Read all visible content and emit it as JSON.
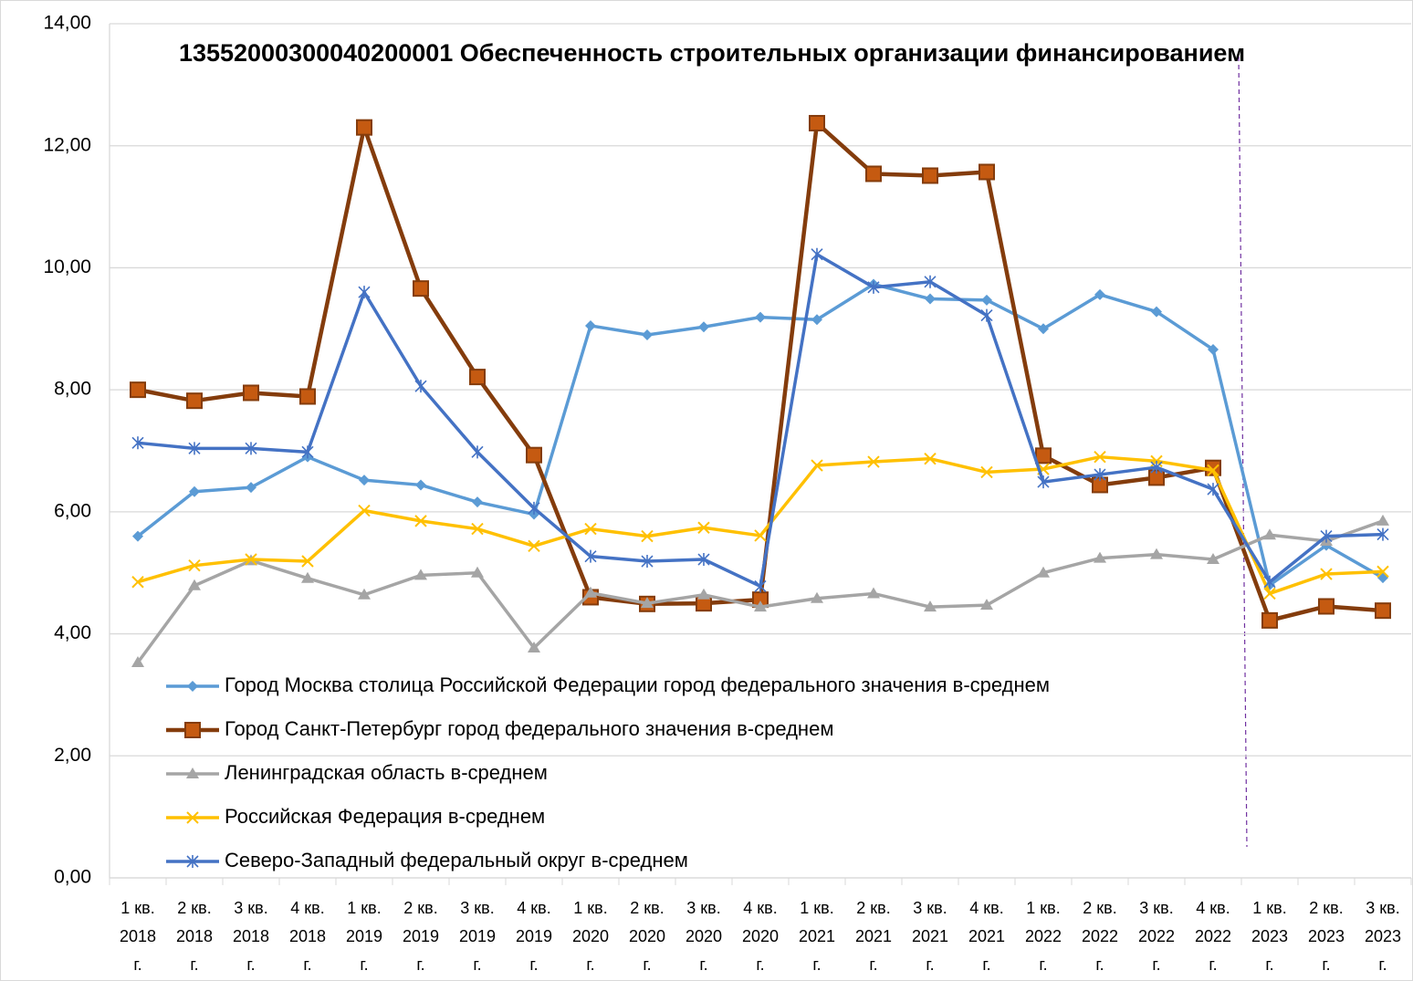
{
  "chart_data": {
    "type": "line",
    "title": "13552000300040200001 Обеспеченность строительных организации финансированием",
    "categories": [
      "1 кв. 2018 г.",
      "2 кв. 2018 г.",
      "3 кв. 2018 г.",
      "4 кв. 2018 г.",
      "1 кв. 2019 г.",
      "2 кв. 2019 г.",
      "3 кв. 2019 г.",
      "4 кв. 2019 г.",
      "1 кв. 2020 г.",
      "2 кв. 2020 г.",
      "3 кв. 2020 г.",
      "4 кв. 2020 г.",
      "1 кв. 2021 г.",
      "2 кв. 2021 г.",
      "3 кв. 2021 г.",
      "4 кв. 2021 г.",
      "1 кв. 2022 г.",
      "2 кв. 2022 г.",
      "3 кв. 2022 г.",
      "4 кв. 2022 г.",
      "1 кв. 2023 г.",
      "2 кв. 2023 г.",
      "3 кв. 2023 г."
    ],
    "series": [
      {
        "name": "Город Москва столица Российской Федерации город федерального значения в-среднем",
        "color": "#5b9bd5",
        "marker": "diamond",
        "values": [
          5.6,
          6.33,
          6.4,
          6.9,
          6.52,
          6.44,
          6.16,
          5.96,
          9.05,
          8.9,
          9.03,
          9.19,
          9.15,
          9.73,
          9.49,
          9.47,
          9.0,
          9.56,
          9.28,
          8.66,
          4.8,
          5.45,
          4.92
        ]
      },
      {
        "name": "Город Санкт-Петербург город федерального значения в-среднем",
        "color": "#843c0c",
        "marker": "square",
        "values": [
          8.0,
          7.82,
          7.95,
          7.89,
          12.3,
          9.66,
          8.21,
          6.93,
          4.6,
          4.49,
          4.5,
          4.56,
          12.37,
          11.54,
          11.51,
          11.57,
          6.92,
          6.44,
          6.56,
          6.72,
          4.22,
          4.45,
          4.38
        ]
      },
      {
        "name": "Ленинградская область в-среднем",
        "color": "#a5a5a5",
        "marker": "triangle",
        "values": [
          3.53,
          4.79,
          5.2,
          4.91,
          4.64,
          4.96,
          5.0,
          3.77,
          4.67,
          4.5,
          4.64,
          4.44,
          4.58,
          4.66,
          4.44,
          4.47,
          5.0,
          5.24,
          5.3,
          5.22,
          5.62,
          5.52,
          5.85
        ]
      },
      {
        "name": "Российская Федерация в-среднем",
        "color": "#ffc000",
        "marker": "x",
        "values": [
          4.85,
          5.12,
          5.22,
          5.19,
          6.02,
          5.85,
          5.72,
          5.44,
          5.72,
          5.6,
          5.74,
          5.61,
          6.76,
          6.82,
          6.87,
          6.65,
          6.7,
          6.9,
          6.83,
          6.68,
          4.66,
          4.98,
          5.02
        ]
      },
      {
        "name": "Северо-Западный федеральный округ в-среднем",
        "color": "#4472c4",
        "marker": "star",
        "values": [
          7.13,
          7.04,
          7.04,
          6.98,
          9.6,
          8.06,
          6.98,
          6.06,
          5.27,
          5.19,
          5.22,
          4.78,
          10.22,
          9.68,
          9.77,
          9.22,
          6.49,
          6.61,
          6.73,
          6.37,
          4.85,
          5.6,
          5.63
        ]
      }
    ],
    "ylim": [
      0,
      14
    ],
    "yticks": [
      {
        "value": 0,
        "label": "0,00"
      },
      {
        "value": 2,
        "label": "2,00"
      },
      {
        "value": 4,
        "label": "4,00"
      },
      {
        "value": 6,
        "label": "6,00"
      },
      {
        "value": 8,
        "label": "8,00"
      },
      {
        "value": 10,
        "label": "10,00"
      },
      {
        "value": 12,
        "label": "12,00"
      },
      {
        "value": 14,
        "label": "14,00"
      }
    ],
    "grid": true,
    "legend": "lower left"
  }
}
